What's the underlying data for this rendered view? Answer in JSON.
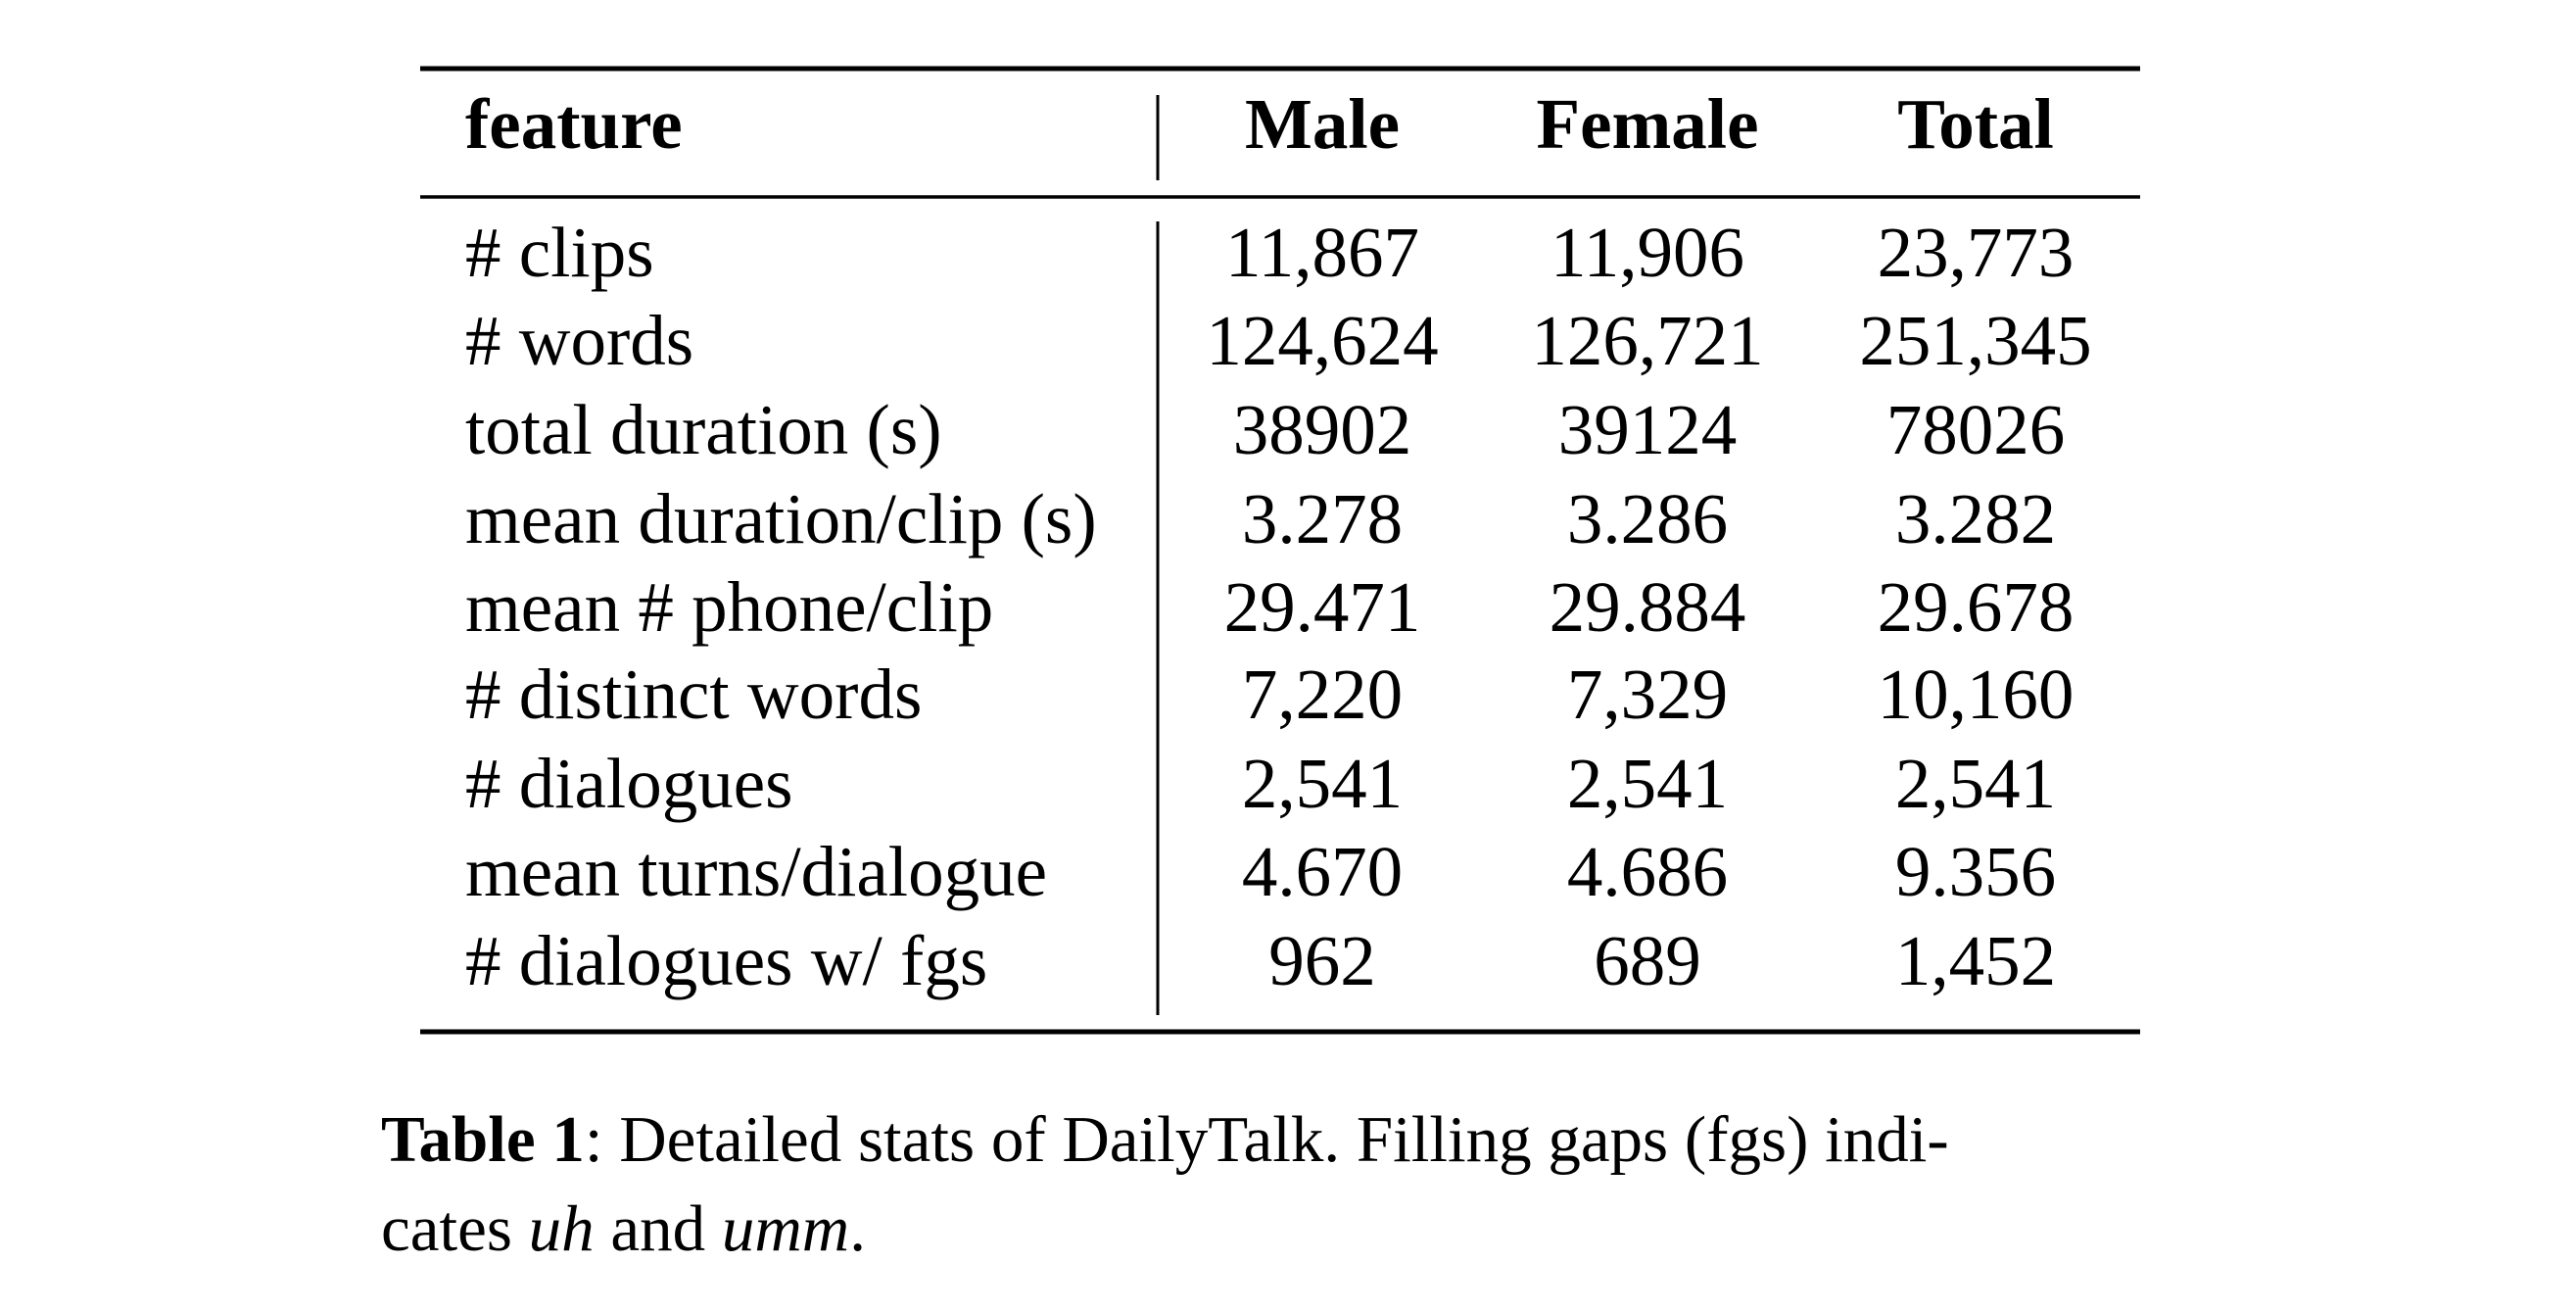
{
  "table": {
    "header": [
      "feature",
      "Male",
      "Female",
      "Total"
    ],
    "rows": [
      [
        "# clips",
        "11,867",
        "11,906",
        "23,773"
      ],
      [
        "# words",
        "124,624",
        "126,721",
        "251,345"
      ],
      [
        "total duration (s)",
        "38902",
        "39124",
        "78026"
      ],
      [
        "mean duration/clip (s)",
        "3.278",
        "3.286",
        "3.282"
      ],
      [
        "mean # phone/clip",
        "29.471",
        "29.884",
        "29.678"
      ],
      [
        "# distinct words",
        "7,220",
        "7,329",
        "10,160"
      ],
      [
        "# dialogues",
        "2,541",
        "2,541",
        "2,541"
      ],
      [
        "mean turns/dialogue",
        "4.670",
        "4.686",
        "9.356"
      ],
      [
        "# dialogues w/ fgs",
        "962",
        "689",
        "1,452"
      ]
    ]
  },
  "caption": {
    "label": "Table 1",
    "line1": ": Detailed stats of DailyTalk. Filling gaps (fgs) indi-",
    "line2_start": "cates ",
    "term1": "uh",
    "middle": " and ",
    "term2": "umm",
    "end": "."
  }
}
